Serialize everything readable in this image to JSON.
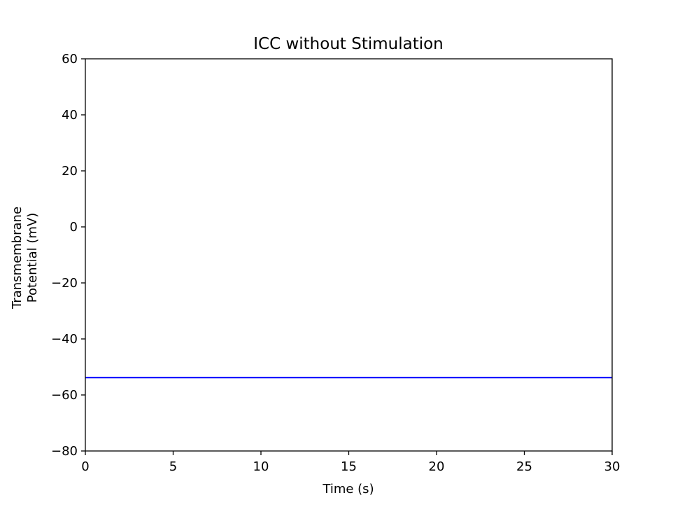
{
  "chart_data": {
    "type": "line",
    "title": "ICC without Stimulation",
    "xlabel": "Time (s)",
    "ylabel_lines": [
      "Transmembrane",
      "Potential (mV)"
    ],
    "xlim": [
      0,
      30
    ],
    "ylim": [
      -80,
      60
    ],
    "xticks": [
      0,
      5,
      10,
      15,
      20,
      25,
      30
    ],
    "xtick_labels": [
      "0",
      "5",
      "10",
      "15",
      "20",
      "25",
      "30"
    ],
    "yticks": [
      -80,
      -60,
      -40,
      -20,
      0,
      20,
      40,
      60
    ],
    "ytick_labels": [
      "−80",
      "−60",
      "−40",
      "−20",
      "0",
      "20",
      "40",
      "60"
    ],
    "grid": false,
    "series": [
      {
        "color": "#0000ff",
        "x": [
          0,
          30
        ],
        "y": [
          -53.8,
          -53.8
        ]
      }
    ]
  }
}
